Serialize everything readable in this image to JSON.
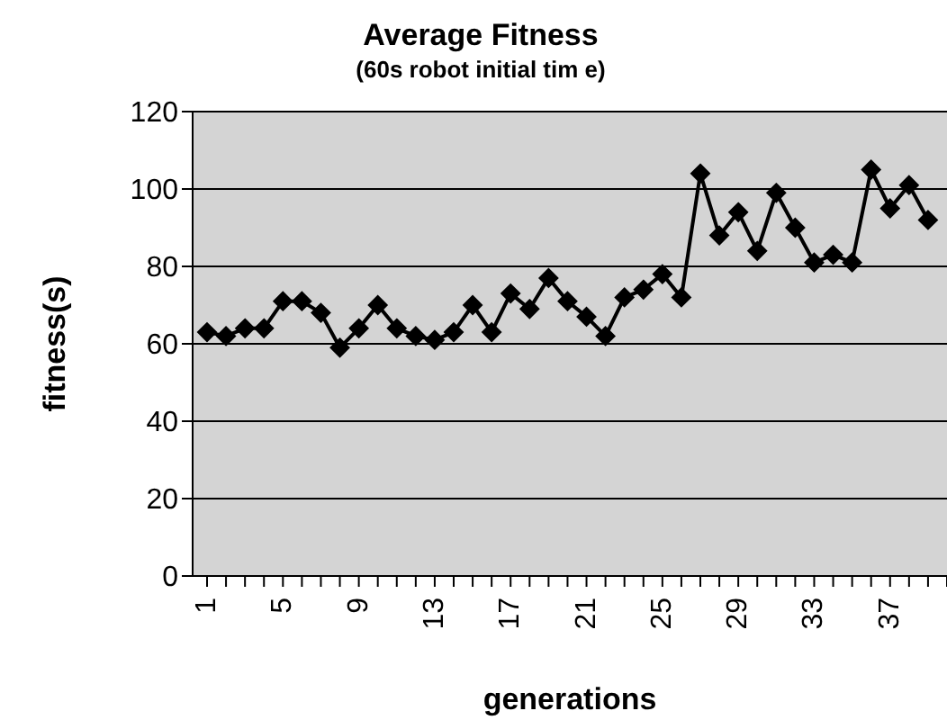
{
  "chart_data": {
    "type": "line",
    "title": "Average Fitness",
    "subtitle": "(60s robot initial tim e)",
    "xlabel": "generations",
    "ylabel": "fitness(s)",
    "categories": [
      "1",
      null,
      null,
      null,
      "5",
      null,
      null,
      null,
      "9",
      null,
      null,
      null,
      "13",
      null,
      null,
      null,
      "17",
      null,
      null,
      null,
      "21",
      null,
      null,
      null,
      "25",
      null,
      null,
      null,
      "29",
      null,
      null,
      null,
      "33",
      null,
      null,
      null,
      "37",
      null,
      null,
      null
    ],
    "series": [
      {
        "color": "#000000",
        "values": [
          63,
          62,
          64,
          64,
          71,
          71,
          68,
          59,
          64,
          70,
          64,
          62,
          61,
          63,
          70,
          63,
          73,
          69,
          77,
          71,
          67,
          62,
          72,
          74,
          78,
          72,
          104,
          88,
          94,
          84,
          99,
          90,
          81,
          83,
          81,
          105,
          95,
          101,
          92,
          null
        ]
      }
    ],
    "ylim": [
      0,
      120
    ],
    "yticks": [
      0,
      20,
      40,
      60,
      80,
      100,
      120
    ],
    "grid": "y",
    "marker": "diamond",
    "line_style": "solid"
  }
}
